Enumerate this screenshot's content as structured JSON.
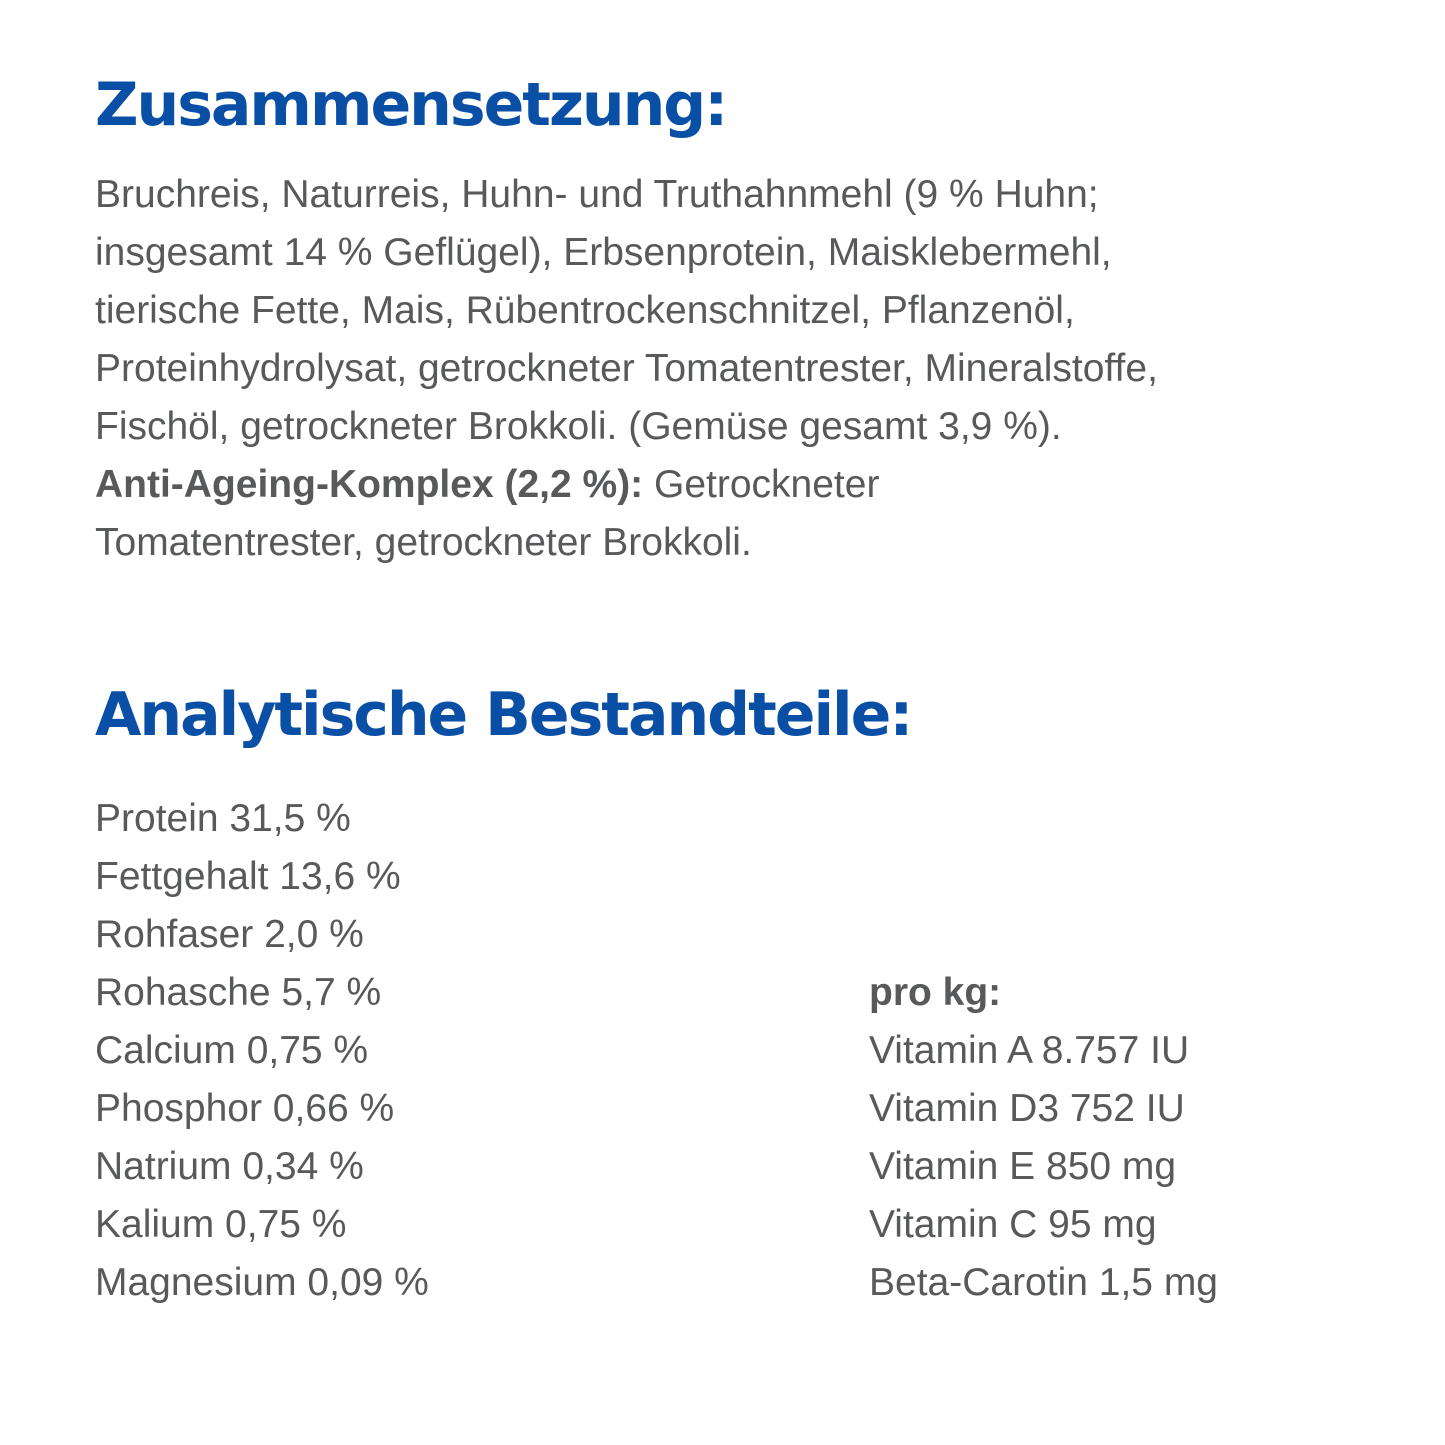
{
  "composition": {
    "title": "Zusammensetzung:",
    "lines": [
      "Bruchreis, Naturreis, Huhn- und Truthahnmehl (9 % Huhn;",
      "insgesamt 14 % Geflügel), Erbsenprotein, Maisklebermehl,",
      "tierische Fette, Mais, Rübentrockenschnitzel, Pflanzenöl,",
      "Proteinhydrolysat, getrockneter Tomatentrester, Mineralstoffe,",
      "Fischöl, getrockneter Brokkoli. (Gemüse gesamt 3,9 %)."
    ],
    "complex_label": "Anti-Ageing-Komplex (2,2 %):",
    "complex_text_1": " Getrockneter",
    "complex_text_2": "Tomatentrester, getrockneter Brokkoli."
  },
  "analytics": {
    "title": "Analytische Bestandteile:",
    "left_items": [
      "Protein 31,5 %",
      "Fettgehalt 13,6 %",
      "Rohfaser 2,0 %",
      "Rohasche 5,7 %",
      "Calcium 0,75 %",
      "Phosphor 0,66 %",
      "Natrium 0,34 %",
      "Kalium 0,75 %",
      "Magnesium 0,09 %"
    ],
    "right_title": "pro kg:",
    "right_items": [
      "Vitamin A 8.757 IU",
      "Vitamin D3 752 IU",
      "Vitamin E 850 mg",
      "Vitamin C 95 mg",
      "Beta-Carotin 1,5 mg"
    ]
  },
  "colors": {
    "heading": "#0a4fa6",
    "body_text": "#58595b",
    "background": "#ffffff"
  }
}
